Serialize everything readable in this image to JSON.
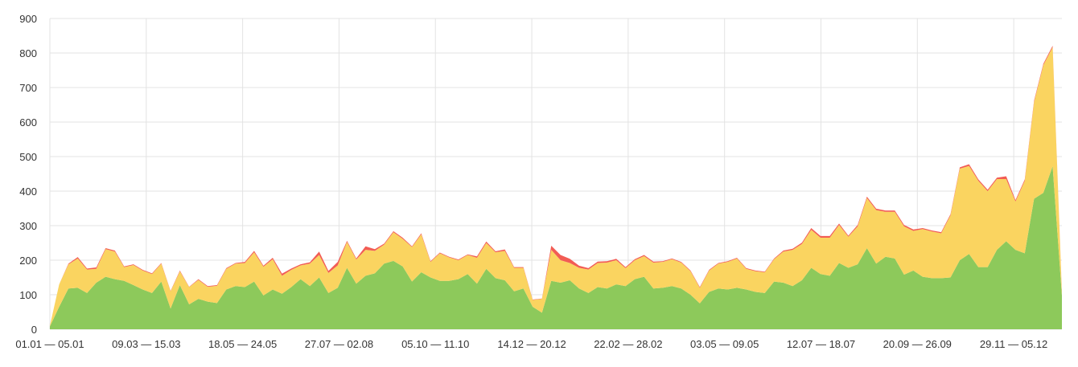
{
  "chart_data": {
    "type": "area",
    "stacked": true,
    "grid": true,
    "ylim": [
      0,
      900
    ],
    "y_ticks": [
      "0",
      "100",
      "200",
      "300",
      "400",
      "500",
      "600",
      "700",
      "800",
      "900"
    ],
    "x_tick_labels": [
      "01.01 — 05.01",
      "09.03 — 15.03",
      "18.05 — 24.05",
      "27.07 — 02.08",
      "05.10 — 11.10",
      "14.12 — 20.12",
      "22.02 — 28.02",
      "03.05 — 09.05",
      "12.07 — 18.07",
      "20.09 — 26.09",
      "29.11 — 05.12"
    ],
    "series": [
      {
        "color": "#8dc95b",
        "values": [
          8,
          65,
          118,
          120,
          105,
          135,
          152,
          145,
          140,
          128,
          115,
          105,
          138,
          60,
          128,
          72,
          88,
          80,
          76,
          115,
          125,
          122,
          138,
          98,
          115,
          103,
          122,
          145,
          125,
          150,
          105,
          120,
          178,
          132,
          155,
          162,
          190,
          198,
          182,
          138,
          165,
          150,
          140,
          140,
          145,
          160,
          132,
          175,
          148,
          142,
          110,
          118,
          65,
          48,
          140,
          135,
          142,
          118,
          105,
          122,
          118,
          130,
          125,
          145,
          152,
          118,
          120,
          125,
          118,
          100,
          75,
          108,
          118,
          115,
          120,
          115,
          108,
          105,
          138,
          135,
          125,
          142,
          178,
          160,
          155,
          192,
          178,
          188,
          235,
          190,
          210,
          205,
          158,
          170,
          152,
          148,
          148,
          150,
          200,
          218,
          180,
          180,
          230,
          255,
          230,
          220,
          378,
          395,
          472,
          98
        ]
      },
      {
        "color": "#fad460",
        "values": [
          2,
          65,
          70,
          85,
          68,
          40,
          80,
          80,
          40,
          58,
          55,
          55,
          52,
          50,
          40,
          50,
          55,
          43,
          50,
          60,
          65,
          70,
          85,
          83,
          88,
          52,
          50,
          40,
          65,
          65,
          58,
          65,
          75,
          70,
          75,
          65,
          55,
          83,
          80,
          100,
          110,
          45,
          80,
          68,
          55,
          55,
          75,
          75,
          75,
          85,
          68,
          60,
          20,
          40,
          90,
          65,
          50,
          60,
          68,
          70,
          75,
          70,
          52,
          55,
          60,
          75,
          75,
          78,
          75,
          68,
          45,
          62,
          72,
          80,
          85,
          60,
          60,
          60,
          65,
          90,
          105,
          105,
          110,
          105,
          110,
          110,
          90,
          110,
          145,
          155,
          130,
          135,
          140,
          115,
          138,
          135,
          130,
          180,
          265,
          255,
          250,
          220,
          205,
          180,
          140,
          210,
          280,
          370,
          345,
          8
        ]
      },
      {
        "color": "#f25c54",
        "values": [
          0,
          0,
          2,
          4,
          3,
          4,
          3,
          3,
          2,
          2,
          2,
          2,
          2,
          1,
          2,
          1,
          2,
          2,
          2,
          2,
          2,
          3,
          4,
          3,
          4,
          6,
          4,
          3,
          4,
          10,
          6,
          10,
          3,
          3,
          10,
          5,
          3,
          3,
          3,
          2,
          3,
          2,
          2,
          2,
          2,
          2,
          4,
          4,
          3,
          4,
          2,
          2,
          1,
          1,
          12,
          15,
          12,
          6,
          4,
          4,
          4,
          4,
          3,
          3,
          3,
          3,
          2,
          2,
          2,
          2,
          2,
          2,
          2,
          2,
          2,
          2,
          2,
          2,
          2,
          3,
          3,
          4,
          5,
          5,
          5,
          4,
          3,
          4,
          4,
          4,
          4,
          4,
          4,
          4,
          3,
          3,
          3,
          3,
          4,
          5,
          4,
          4,
          4,
          8,
          4,
          4,
          4,
          4,
          4,
          2
        ]
      }
    ]
  }
}
